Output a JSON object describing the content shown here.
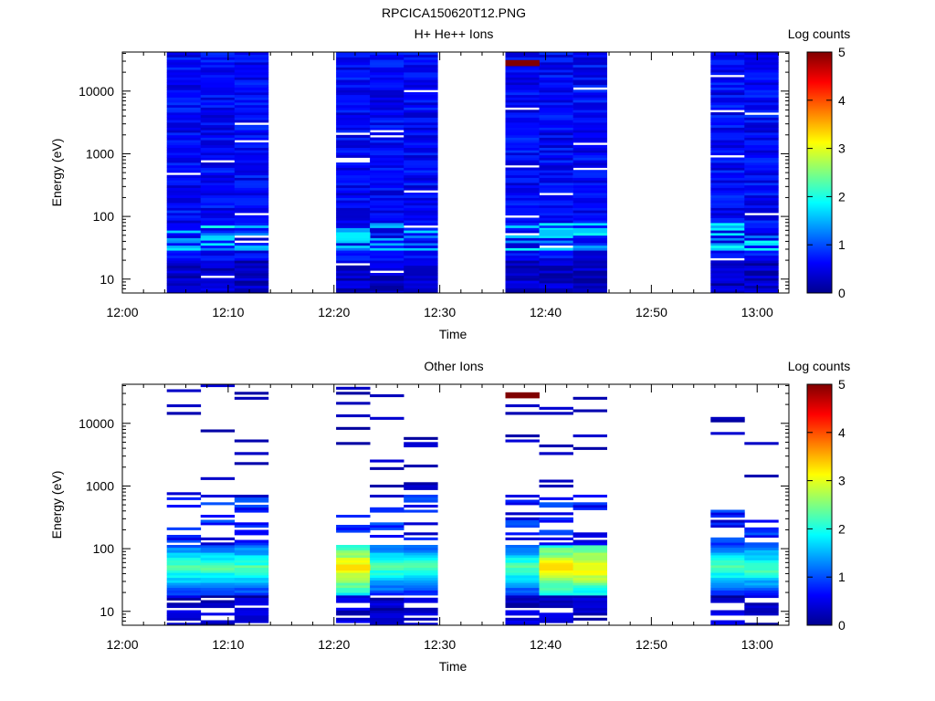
{
  "figure_title": "RPCICA150620T12.PNG",
  "chart_data": [
    {
      "type": "heatmap",
      "title": "H+ He++ Ions",
      "xlabel": "Time",
      "ylabel": "Energy (eV)",
      "x_ticks": [
        "12:00",
        "12:10",
        "12:20",
        "12:30",
        "12:40",
        "12:50",
        "13:00"
      ],
      "x_range_minutes": [
        0,
        63
      ],
      "y_scale": "log",
      "y_ticks": [
        "10",
        "100",
        "1000",
        "10000"
      ],
      "y_range": [
        6,
        42000
      ],
      "colorbar": {
        "label": "Log counts",
        "range": [
          0,
          5
        ],
        "ticks": [
          "0",
          "1",
          "2",
          "3",
          "4",
          "5"
        ]
      },
      "scans_start_minutes": [
        4.2,
        7.4,
        10.6,
        20.2,
        23.4,
        26.6,
        36.2,
        39.4,
        42.6,
        55.6,
        58.8
      ],
      "notable_values": [
        {
          "time": "12:38",
          "energy_eV": 28000,
          "log_counts": 5.0
        },
        {
          "time": "12:22",
          "energy_eV": 50,
          "log_counts": 1.8
        },
        {
          "time": "12:41",
          "energy_eV": 55,
          "log_counts": 1.6
        }
      ]
    },
    {
      "type": "heatmap",
      "title": "Other Ions",
      "xlabel": "Time",
      "ylabel": "Energy (eV)",
      "x_ticks": [
        "12:00",
        "12:10",
        "12:20",
        "12:30",
        "12:40",
        "12:50",
        "13:00"
      ],
      "x_range_minutes": [
        0,
        63
      ],
      "y_scale": "log",
      "y_ticks": [
        "10",
        "100",
        "1000",
        "10000"
      ],
      "y_range": [
        6,
        42000
      ],
      "colorbar": {
        "label": "Log counts",
        "range": [
          0,
          5
        ],
        "ticks": [
          "0",
          "1",
          "2",
          "3",
          "4",
          "5"
        ]
      },
      "scans_start_minutes": [
        4.2,
        7.4,
        10.6,
        20.2,
        23.4,
        26.6,
        36.2,
        39.4,
        42.6,
        55.6,
        58.8
      ],
      "notable_values": [
        {
          "time": "12:38",
          "energy_eV": 28000,
          "log_counts": 5.0
        },
        {
          "time": "12:22",
          "energy_eV": 50,
          "log_counts": 3.3
        },
        {
          "time": "12:41",
          "energy_eV": 50,
          "log_counts": 3.3
        },
        {
          "time": "12:44",
          "energy_eV": 50,
          "log_counts": 3.0
        }
      ]
    }
  ]
}
